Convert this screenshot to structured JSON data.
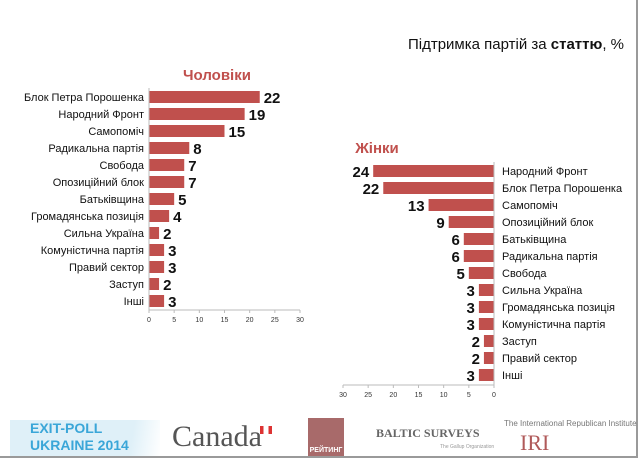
{
  "title_prefix": "Підтримка партій за ",
  "title_bold": "статтю",
  "title_suffix": ", %",
  "chart_data": [
    {
      "type": "bar",
      "orientation": "horizontal",
      "title": "Чоловіки",
      "categories": [
        "Блок Петра Порошенка",
        "Народний Фронт",
        "Самопоміч",
        "Радикальна партія",
        "Свобода",
        "Опозиційний блок",
        "Батьківщина",
        "Громадянська позиція",
        "Сильна Україна",
        "Комуністична партія",
        "Правий сектор",
        "Заступ",
        "Інші"
      ],
      "values": [
        22,
        19,
        15,
        8,
        7,
        7,
        5,
        4,
        2,
        3,
        3,
        2,
        3
      ],
      "xlim": [
        0,
        30
      ],
      "ticks": [
        0,
        5,
        10,
        15,
        20,
        25,
        30
      ],
      "color": "#c0504d",
      "grid": false
    },
    {
      "type": "bar",
      "orientation": "horizontal",
      "reversed_axis": true,
      "title": "Жінки",
      "categories": [
        "Народний Фронт",
        "Блок Петра Порошенка",
        "Самопоміч",
        "Опозиційний блок",
        "Батьківщина",
        "Радикальна партія",
        "Свобода",
        "Сильна Україна",
        "Громадянська позиція",
        "Комуністична партія",
        "Заступ",
        "Правий сектор",
        "Інші"
      ],
      "values": [
        24,
        22,
        13,
        9,
        6,
        6,
        5,
        3,
        3,
        3,
        2,
        2,
        3
      ],
      "xlim": [
        0,
        30
      ],
      "ticks": [
        0,
        5,
        10,
        15,
        20,
        25,
        30
      ],
      "color": "#c0504d",
      "grid": false
    }
  ],
  "footer": {
    "exit_line1": "EXIT-POLL",
    "exit_line2": "UKRAINE 2014",
    "canada": "Canada",
    "rating": "РЕЙТИНГ",
    "baltic": "BALTIC SURVEYS",
    "gallup": "The Gallup Organization",
    "iri_full": "The International Republican Institute",
    "iri": "IRI"
  }
}
